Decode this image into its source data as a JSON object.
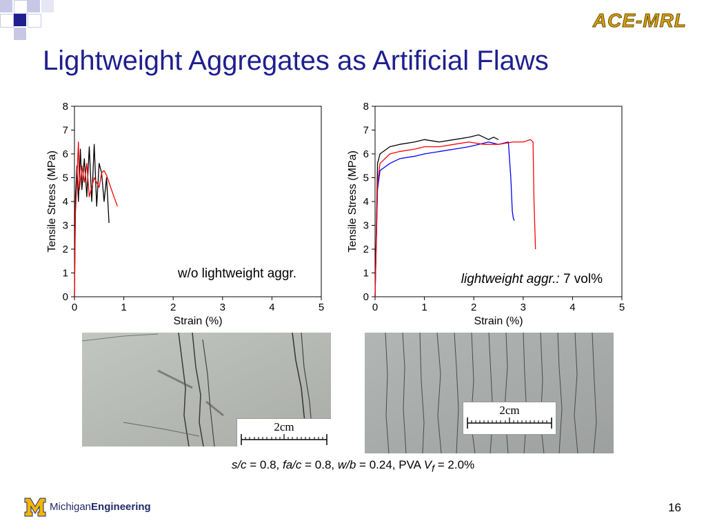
{
  "slide": {
    "title": "Lightweight Aggregates as Artificial Flaws",
    "brand": "ACE-MRL",
    "page_number": "16",
    "footer": {
      "michigan": "Michigan",
      "engineering": "Engineering"
    },
    "caption_parts": [
      "s/c",
      " = 0.8, ",
      "fa/c",
      " = 0.8, ",
      "w/b",
      " = 0.24, PVA ",
      "V",
      "f",
      " = 2.0%"
    ],
    "photos": [
      {
        "scale_label": "2cm"
      },
      {
        "scale_label": "2cm"
      }
    ],
    "colors": {
      "title": "#1f1f8f",
      "brand": "#d4a017",
      "series_black": "#000000",
      "series_red": "#ff0000",
      "series_blue": "#0000ff"
    }
  },
  "chart_data": [
    {
      "type": "line",
      "xlabel": "Strain (%)",
      "ylabel": "Tensile Stress (MPa)",
      "xlim": [
        0,
        5
      ],
      "ylim": [
        0,
        8
      ],
      "xticks": [
        "0",
        "1",
        "2",
        "3",
        "4",
        "5"
      ],
      "yticks": [
        "0",
        "1",
        "2",
        "3",
        "4",
        "5",
        "6",
        "7",
        "8"
      ],
      "annotation": "w/o lightweight aggr.",
      "series": [
        {
          "color": "#000000",
          "x": [
            0,
            0.02,
            0.05,
            0.08,
            0.12,
            0.15,
            0.2,
            0.25,
            0.3,
            0.35,
            0.4,
            0.45,
            0.5,
            0.55,
            0.6,
            0.65,
            0.7
          ],
          "y": [
            0,
            4.2,
            5.5,
            4.0,
            6.2,
            4.5,
            5.8,
            4.2,
            6.3,
            4.0,
            6.4,
            3.8,
            5.6,
            5.2,
            4.0,
            5.0,
            3.1
          ]
        },
        {
          "color": "#ff0000",
          "x": [
            0,
            0.02,
            0.05,
            0.08,
            0.1,
            0.15,
            0.2,
            0.25,
            0.3,
            0.4,
            0.5,
            0.55,
            0.6,
            0.65,
            0.7,
            0.75,
            0.8,
            0.87
          ],
          "y": [
            0,
            3.5,
            5.0,
            6.5,
            4.5,
            5.5,
            4.8,
            5.6,
            4.2,
            5.0,
            4.6,
            5.2,
            5.3,
            5.1,
            4.8,
            4.5,
            4.2,
            3.8
          ]
        }
      ]
    },
    {
      "type": "line",
      "xlabel": "Strain (%)",
      "ylabel": "Tensile Stress (MPa)",
      "xlim": [
        0,
        5
      ],
      "ylim": [
        0,
        8
      ],
      "xticks": [
        "0",
        "1",
        "2",
        "3",
        "4",
        "5"
      ],
      "yticks": [
        "0",
        "1",
        "2",
        "3",
        "4",
        "5",
        "6",
        "7",
        "8"
      ],
      "annotation_italic": "lightweight aggr.:",
      "annotation_plain": " 7 vol%",
      "series": [
        {
          "color": "#000000",
          "x": [
            0,
            0.05,
            0.1,
            0.3,
            0.5,
            0.8,
            1.0,
            1.3,
            1.6,
            1.9,
            2.1,
            2.2,
            2.3,
            2.4,
            2.5
          ],
          "y": [
            0,
            5.6,
            6.0,
            6.3,
            6.4,
            6.5,
            6.6,
            6.5,
            6.6,
            6.7,
            6.8,
            6.7,
            6.6,
            6.7,
            6.6
          ]
        },
        {
          "color": "#0000ff",
          "x": [
            0,
            0.05,
            0.1,
            0.3,
            0.5,
            0.8,
            1.0,
            1.3,
            1.6,
            1.9,
            2.1,
            2.3,
            2.5,
            2.7,
            2.75,
            2.78,
            2.8,
            2.82
          ],
          "y": [
            0,
            4.5,
            5.3,
            5.6,
            5.8,
            5.9,
            6.0,
            6.1,
            6.2,
            6.3,
            6.4,
            6.5,
            6.4,
            6.5,
            5.0,
            3.6,
            3.3,
            3.2
          ]
        },
        {
          "color": "#ff0000",
          "x": [
            0,
            0.05,
            0.1,
            0.3,
            0.5,
            0.8,
            1.0,
            1.3,
            1.6,
            1.9,
            2.2,
            2.5,
            2.8,
            3.0,
            3.15,
            3.2,
            3.22,
            3.25
          ],
          "y": [
            0,
            4.8,
            5.6,
            6.0,
            6.1,
            6.2,
            6.3,
            6.3,
            6.4,
            6.5,
            6.4,
            6.4,
            6.5,
            6.5,
            6.6,
            6.5,
            4.0,
            2.0
          ]
        }
      ]
    }
  ]
}
